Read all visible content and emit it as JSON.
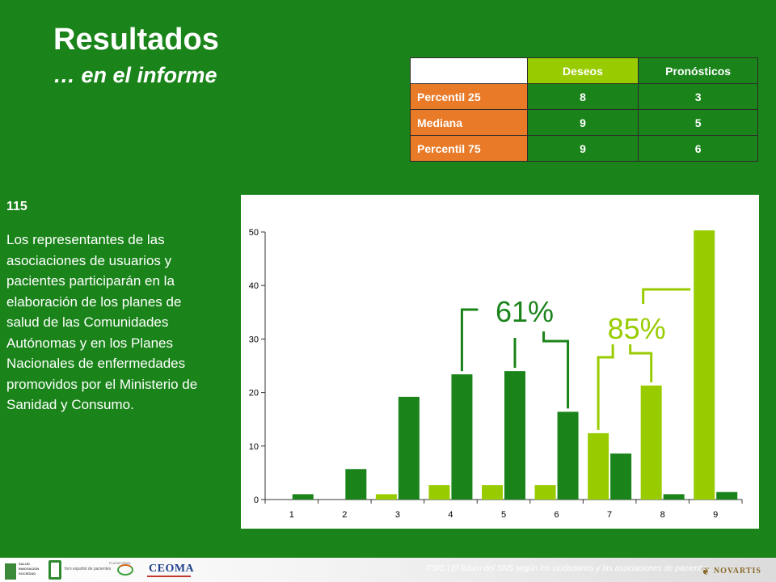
{
  "slide": {
    "title": "Resultados",
    "subtitle": "… en el informe",
    "item_number": "115",
    "body": "Los representantes de las asociaciones de usuarios y pacientes participarán en la elaboración de los planes de salud de las Comunidades Autónomas y en los Planes Nacionales de enfermedades promovidos por el Ministerio de Sanidad y Consumo."
  },
  "stats_table": {
    "headers": [
      "Deseos",
      "Pronósticos"
    ],
    "rows": [
      {
        "label": "Percentil 25",
        "deseos": "8",
        "pronosticos": "3"
      },
      {
        "label": "Mediana",
        "deseos": "9",
        "pronosticos": "5"
      },
      {
        "label": "Percentil 75",
        "deseos": "9",
        "pronosticos": "6"
      }
    ]
  },
  "chart_data": {
    "type": "bar",
    "categories": [
      "1",
      "2",
      "3",
      "4",
      "5",
      "6",
      "7",
      "8",
      "9"
    ],
    "series": [
      {
        "values": [
          0,
          0,
          1,
          2.7,
          2.7,
          2.7,
          12.4,
          21.3,
          50.3
        ],
        "color": "#99cc00"
      },
      {
        "values": [
          1,
          5.7,
          19.2,
          23.4,
          24,
          16.4,
          8.6,
          1,
          1.4
        ],
        "color": "#1a841a"
      }
    ],
    "ylim": [
      0,
      50
    ],
    "yticks": [
      "0",
      "10",
      "20",
      "30",
      "40",
      "50"
    ],
    "annotations": [
      {
        "text": "61%",
        "color": "#1a841a"
      },
      {
        "text": "85%",
        "color": "#99cc00"
      }
    ]
  },
  "footer": {
    "text": "FSIS | El futuro del SNS según los ciudadanos y las asociaciones de pacientes",
    "logos": [
      "SALUD INNOVACIÓN SOCIEDAD",
      "foro español de pacientes",
      "PLATAFORMA",
      "CEOMA",
      "NOVARTIS"
    ]
  },
  "colors": {
    "background": "#1a841a",
    "accent_orange": "#e87a28",
    "accent_lime": "#99cc00"
  }
}
